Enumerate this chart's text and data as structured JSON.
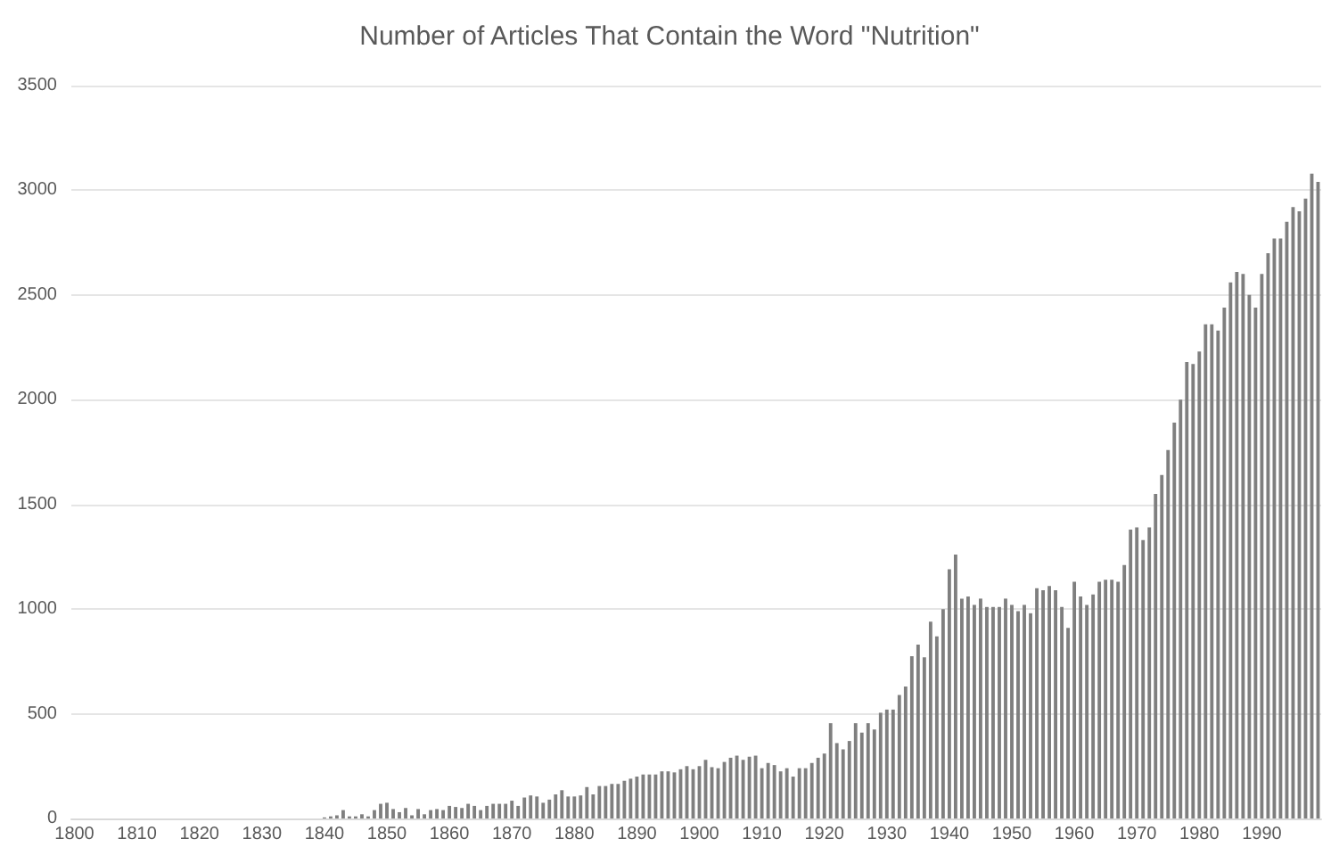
{
  "chart_data": {
    "type": "bar",
    "title": "Number of Articles That Contain the Word \"Nutrition\"",
    "categories": [
      "1800",
      null,
      null,
      null,
      null,
      null,
      null,
      null,
      null,
      null,
      "1810",
      null,
      null,
      null,
      null,
      null,
      null,
      null,
      null,
      null,
      "1820",
      null,
      null,
      null,
      null,
      null,
      null,
      null,
      null,
      null,
      "1830",
      null,
      null,
      null,
      null,
      null,
      null,
      null,
      null,
      null,
      "1840",
      null,
      null,
      null,
      null,
      null,
      null,
      null,
      null,
      null,
      "1850",
      null,
      null,
      null,
      null,
      null,
      null,
      null,
      null,
      null,
      "1860",
      null,
      null,
      null,
      null,
      null,
      null,
      null,
      null,
      null,
      "1870",
      null,
      null,
      null,
      null,
      null,
      null,
      null,
      null,
      null,
      "1880",
      null,
      null,
      null,
      null,
      null,
      null,
      null,
      null,
      null,
      "1890",
      null,
      null,
      null,
      null,
      null,
      null,
      null,
      null,
      null,
      "1900",
      null,
      null,
      null,
      null,
      null,
      null,
      null,
      null,
      null,
      "1910",
      null,
      null,
      null,
      null,
      null,
      null,
      null,
      null,
      null,
      "1920",
      null,
      null,
      null,
      null,
      null,
      null,
      null,
      null,
      null,
      "1930",
      null,
      null,
      null,
      null,
      null,
      null,
      null,
      null,
      null,
      "1940",
      null,
      null,
      null,
      null,
      null,
      null,
      null,
      null,
      null,
      "1950",
      null,
      null,
      null,
      null,
      null,
      null,
      null,
      null,
      null,
      "1960",
      null,
      null,
      null,
      null,
      null,
      null,
      null,
      null,
      null,
      "1970",
      null,
      null,
      null,
      null,
      null,
      null,
      null,
      null,
      null,
      "1980",
      null,
      null,
      null,
      null,
      null,
      null,
      null,
      null,
      null,
      "1990",
      null,
      null,
      null,
      null,
      null,
      null,
      null,
      null,
      null
    ],
    "values": [
      0,
      0,
      0,
      0,
      0,
      0,
      0,
      0,
      0,
      0,
      0,
      0,
      0,
      0,
      0,
      0,
      0,
      0,
      0,
      0,
      0,
      0,
      0,
      0,
      0,
      0,
      0,
      0,
      0,
      0,
      0,
      0,
      0,
      0,
      0,
      0,
      0,
      0,
      0,
      0,
      5,
      10,
      15,
      40,
      10,
      10,
      20,
      10,
      40,
      70,
      75,
      45,
      30,
      50,
      15,
      45,
      20,
      40,
      45,
      40,
      60,
      55,
      50,
      70,
      60,
      40,
      60,
      70,
      70,
      70,
      85,
      60,
      100,
      110,
      105,
      75,
      90,
      115,
      135,
      105,
      105,
      110,
      150,
      115,
      155,
      155,
      165,
      165,
      180,
      190,
      200,
      210,
      210,
      210,
      225,
      225,
      220,
      235,
      250,
      235,
      250,
      280,
      245,
      240,
      270,
      290,
      300,
      280,
      295,
      300,
      240,
      265,
      255,
      225,
      240,
      200,
      240,
      240,
      265,
      290,
      310,
      455,
      360,
      330,
      370,
      455,
      410,
      455,
      425,
      505,
      520,
      520,
      590,
      630,
      775,
      830,
      770,
      940,
      870,
      1000,
      1190,
      1260,
      1050,
      1060,
      1020,
      1050,
      1010,
      1010,
      1010,
      1050,
      1020,
      990,
      1020,
      980,
      1100,
      1090,
      1110,
      1090,
      1010,
      910,
      1130,
      1060,
      1020,
      1070,
      1130,
      1140,
      1140,
      1130,
      1210,
      1380,
      1390,
      1330,
      1390,
      1550,
      1640,
      1760,
      1890,
      2000,
      2180,
      2170,
      2230,
      2360,
      2360,
      2330,
      2440,
      2560,
      2610,
      2600,
      2500,
      2440,
      2600,
      2700,
      2770,
      2770,
      2850,
      2920,
      2900,
      2960,
      3080,
      3040
    ],
    "color": "#7f7f7f",
    "ylim": [
      0,
      3500
    ],
    "yticks": [
      0,
      500,
      1000,
      1500,
      2000,
      2500,
      3000,
      3500
    ],
    "grid": "y"
  }
}
